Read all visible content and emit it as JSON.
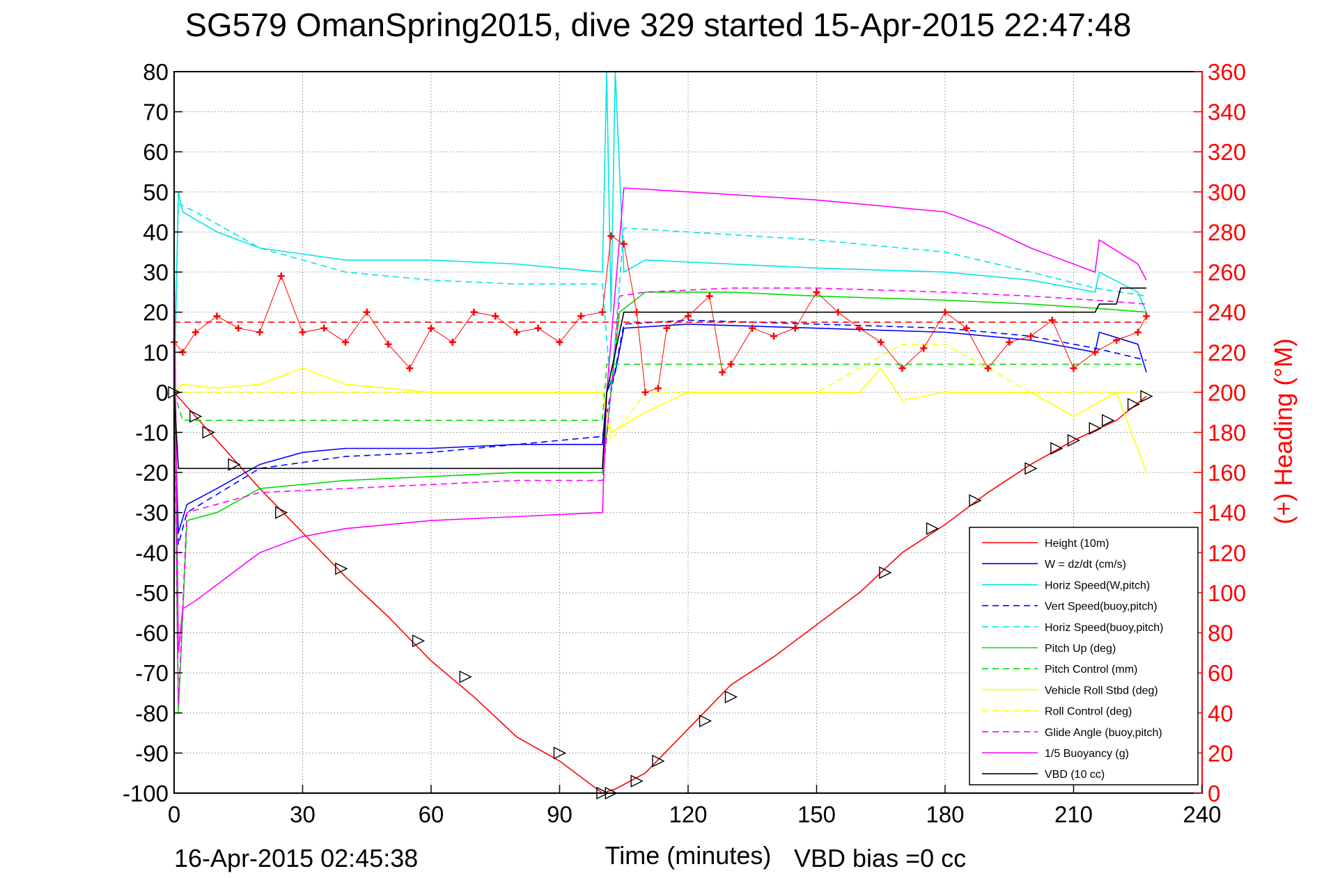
{
  "chart_data": {
    "type": "line",
    "title": "SG579 OmanSpring2015, dive 329 started 15-Apr-2015 22:47:48",
    "xlabel": "Time (minutes)",
    "ylabel": "",
    "y2label": "(+) Heading (°M)",
    "xlim": [
      0,
      240
    ],
    "ylim": [
      -100,
      80
    ],
    "y2lim": [
      0,
      360
    ],
    "xticks": [
      0,
      30,
      60,
      90,
      120,
      150,
      180,
      210,
      240
    ],
    "yticks": [
      -100,
      -90,
      -80,
      -70,
      -60,
      -50,
      -40,
      -30,
      -20,
      -10,
      0,
      10,
      20,
      30,
      40,
      50,
      60,
      70,
      80
    ],
    "y2ticks": [
      0,
      20,
      40,
      60,
      80,
      100,
      120,
      140,
      160,
      180,
      200,
      220,
      240,
      260,
      280,
      300,
      320,
      340,
      360
    ],
    "grid": true,
    "legend_position": "bottom-right",
    "footer_left": "16-Apr-2015 02:45:38",
    "footer_right": "VBD bias =0 cc",
    "series": [
      {
        "name": "Height (10m)",
        "color": "#ff0000",
        "style": "solid",
        "axis": "left",
        "x": [
          0,
          5,
          10,
          20,
          30,
          40,
          50,
          60,
          70,
          80,
          90,
          100,
          103,
          110,
          120,
          130,
          140,
          150,
          160,
          170,
          180,
          190,
          200,
          210,
          220,
          227
        ],
        "y": [
          0,
          -6,
          -12,
          -24,
          -35,
          -46,
          -56,
          -67,
          -76,
          -86,
          -92,
          -100,
          -99,
          -95,
          -84,
          -73,
          -66,
          -58,
          -50,
          -40,
          -33,
          -25,
          -18,
          -12,
          -7,
          -1
        ]
      },
      {
        "name": "W = dz/dt (cm/s)",
        "color": "#0000ff",
        "style": "solid",
        "axis": "left",
        "x": [
          0,
          1,
          3,
          10,
          20,
          30,
          40,
          60,
          80,
          100,
          101,
          103,
          105,
          120,
          150,
          180,
          200,
          215,
          216,
          225,
          227
        ],
        "y": [
          0,
          -35,
          -28,
          -24,
          -18,
          -15,
          -14,
          -14,
          -13,
          -13,
          0,
          5,
          16,
          17,
          16,
          15,
          13,
          10,
          15,
          12,
          5
        ]
      },
      {
        "name": "Horiz Speed(W,pitch)",
        "color": "#00e5e5",
        "style": "solid",
        "axis": "left",
        "x": [
          0,
          1,
          2,
          10,
          20,
          40,
          60,
          80,
          100,
          101,
          102,
          103,
          105,
          110,
          130,
          150,
          180,
          200,
          215,
          216,
          225,
          227
        ],
        "y": [
          0,
          50,
          45,
          40,
          36,
          33,
          33,
          32,
          30,
          80,
          20,
          80,
          30,
          33,
          32,
          31,
          30,
          28,
          25,
          30,
          25,
          20
        ]
      },
      {
        "name": "Vert Speed(buoy,pitch)",
        "color": "#0000ff",
        "style": "dashed",
        "axis": "left",
        "x": [
          0,
          1,
          3,
          20,
          40,
          60,
          80,
          100,
          102,
          105,
          120,
          150,
          180,
          200,
          215,
          227
        ],
        "y": [
          0,
          -38,
          -30,
          -19,
          -16,
          -15,
          -13,
          -11,
          0,
          17,
          18,
          17,
          16,
          14,
          11,
          8
        ]
      },
      {
        "name": "Horiz Speed(buoy,pitch)",
        "color": "#00e5e5",
        "style": "dashed",
        "axis": "left",
        "x": [
          0,
          1,
          5,
          20,
          40,
          60,
          80,
          100,
          102,
          105,
          120,
          150,
          180,
          200,
          215,
          227
        ],
        "y": [
          0,
          47,
          45,
          36,
          30,
          28,
          27,
          27,
          0,
          41,
          40,
          38,
          35,
          30,
          26,
          24
        ]
      },
      {
        "name": "Pitch Up (deg)",
        "color": "#00dd00",
        "style": "solid",
        "axis": "left",
        "x": [
          0,
          1,
          3,
          10,
          20,
          40,
          60,
          80,
          100,
          102,
          104,
          110,
          130,
          150,
          180,
          200,
          215,
          227
        ],
        "y": [
          0,
          -80,
          -32,
          -30,
          -24,
          -22,
          -21,
          -20,
          -20,
          0,
          20,
          25,
          25,
          24,
          23,
          22,
          21,
          20
        ]
      },
      {
        "name": "Pitch Control (mm)",
        "color": "#00dd00",
        "style": "dashed",
        "axis": "left",
        "x": [
          0,
          2,
          100,
          101,
          227
        ],
        "y": [
          0,
          -7,
          -7,
          7,
          7
        ]
      },
      {
        "name": "Vehicle Roll Stbd (deg)",
        "color": "#ffff00",
        "style": "solid",
        "axis": "left",
        "x": [
          0,
          2,
          10,
          20,
          30,
          40,
          60,
          80,
          100,
          102,
          110,
          120,
          150,
          160,
          165,
          170,
          180,
          200,
          210,
          220,
          227
        ],
        "y": [
          0,
          2,
          1,
          2,
          6,
          2,
          0,
          0,
          0,
          -10,
          -5,
          0,
          0,
          0,
          6,
          -2,
          0,
          0,
          -6,
          0,
          -20
        ]
      },
      {
        "name": "Roll Control (deg)",
        "color": "#ffff00",
        "style": "dashed",
        "axis": "left",
        "x": [
          0,
          5,
          20,
          40,
          60,
          80,
          100,
          102,
          110,
          120,
          150,
          170,
          180,
          200,
          227
        ],
        "y": [
          0,
          0,
          0,
          0,
          0,
          0,
          0,
          -12,
          0,
          0,
          0,
          12,
          12,
          0,
          0
        ]
      },
      {
        "name": "Glide Angle (buoy,pitch)",
        "color": "#ff00ff",
        "style": "dashed",
        "axis": "left",
        "x": [
          0,
          1,
          3,
          20,
          40,
          60,
          80,
          100,
          102,
          104,
          110,
          130,
          150,
          180,
          200,
          215,
          227
        ],
        "y": [
          0,
          -78,
          -30,
          -25,
          -24,
          -23,
          -22,
          -22,
          0,
          24,
          25,
          26,
          26,
          25,
          24,
          23,
          22
        ]
      },
      {
        "name": "1/5 Buoyancy (g)",
        "color": "#ff00ff",
        "style": "solid",
        "axis": "left",
        "x": [
          0,
          1,
          2,
          5,
          10,
          20,
          30,
          40,
          60,
          80,
          100,
          101,
          105,
          120,
          150,
          170,
          180,
          190,
          200,
          210,
          215,
          216,
          225,
          227
        ],
        "y": [
          35,
          -65,
          -54,
          -52,
          -48,
          -40,
          -36,
          -34,
          -32,
          -31,
          -30,
          0,
          51,
          50,
          48,
          46,
          45,
          41,
          36,
          32,
          30,
          38,
          32,
          28
        ]
      },
      {
        "name": "VBD (10 cc)",
        "color": "#000000",
        "style": "solid",
        "axis": "left",
        "x": [
          0,
          1,
          100,
          101,
          105,
          215,
          216,
          220,
          221,
          227
        ],
        "y": [
          0,
          -19,
          -19,
          0,
          20,
          20,
          22,
          22,
          26,
          26
        ]
      },
      {
        "name": "Heading",
        "color": "#ff0000",
        "style": "marker-plus",
        "axis": "right",
        "x": [
          0,
          2,
          5,
          10,
          15,
          20,
          25,
          30,
          35,
          40,
          45,
          50,
          55,
          60,
          65,
          70,
          75,
          80,
          85,
          90,
          95,
          100,
          102,
          105,
          108,
          110,
          113,
          115,
          120,
          125,
          128,
          130,
          135,
          140,
          145,
          150,
          155,
          160,
          165,
          170,
          175,
          180,
          185,
          190,
          195,
          200,
          205,
          210,
          215,
          220,
          225,
          227
        ],
        "y": [
          225,
          220,
          230,
          238,
          232,
          230,
          258,
          230,
          232,
          225,
          240,
          224,
          212,
          232,
          225,
          240,
          238,
          230,
          232,
          225,
          238,
          240,
          278,
          274,
          240,
          200,
          202,
          232,
          238,
          248,
          210,
          214,
          232,
          228,
          232,
          250,
          240,
          232,
          225,
          212,
          222,
          240,
          232,
          212,
          225,
          228,
          236,
          212,
          220,
          226,
          230,
          238
        ]
      },
      {
        "name": "Heading target",
        "color": "#ff0000",
        "style": "dashed",
        "axis": "right",
        "x": [
          0,
          227
        ],
        "y": [
          235,
          235
        ]
      }
    ],
    "markers": {
      "name": "Height samples",
      "color": "#000000",
      "shape": "triangle",
      "x": [
        0,
        5,
        8,
        14,
        25,
        39,
        57,
        68,
        90,
        100,
        102,
        108,
        113,
        124,
        130,
        166,
        177,
        187,
        200,
        206,
        210,
        215,
        218,
        224,
        227
      ],
      "y": [
        0,
        -6,
        -10,
        -18,
        -30,
        -44,
        -62,
        -71,
        -90,
        -100,
        -100,
        -97,
        -92,
        -82,
        -76,
        -45,
        -34,
        -27,
        -19,
        -14,
        -12,
        -9,
        -7,
        -3,
        -1
      ]
    }
  }
}
